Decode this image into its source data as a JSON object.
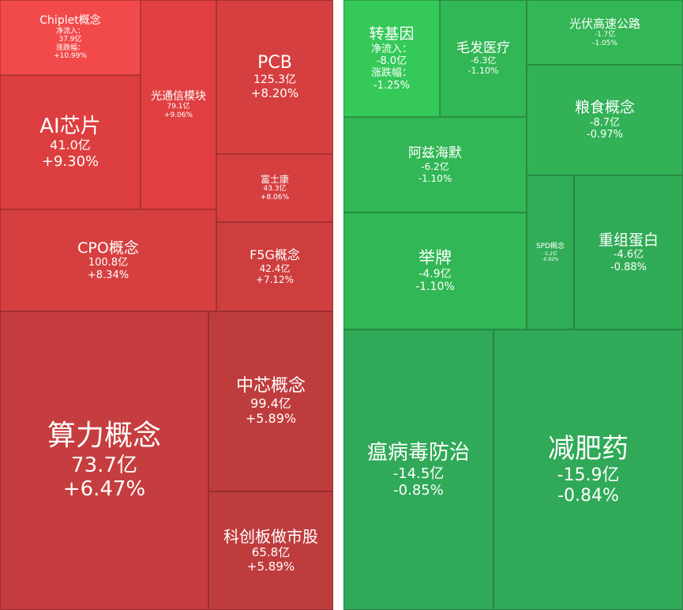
{
  "chart_data": [
    {
      "type": "treemap",
      "group": "gainers",
      "items": [
        {
          "name": "Chiplet概念",
          "flow_label": "净流入：",
          "flow": "37.9亿",
          "change_label": "涨跌幅：",
          "change": "+10.99%",
          "color": "#f24a4a"
        },
        {
          "name": "光通信模块",
          "flow": "79.1亿",
          "change": "+9.06%",
          "color": "#e04041"
        },
        {
          "name": "PCB",
          "flow": "125.3亿",
          "change": "+8.20%",
          "color": "#d63f40"
        },
        {
          "name": "AI芯片",
          "flow": "41.0亿",
          "change": "+9.30%",
          "color": "#dd3e3f"
        },
        {
          "name": "富士康",
          "flow": "43.3亿",
          "change": "+8.06%",
          "color": "#d63f40"
        },
        {
          "name": "CPO概念",
          "flow": "100.8亿",
          "change": "+8.34%",
          "color": "#d63f40"
        },
        {
          "name": "F5G概念",
          "flow": "42.4亿",
          "change": "+7.12%",
          "color": "#ce3e3f"
        },
        {
          "name": "算力概念",
          "flow": "73.7亿",
          "change": "+6.47%",
          "color": "#c53d3e"
        },
        {
          "name": "中芯概念",
          "flow": "99.4亿",
          "change": "+5.89%",
          "color": "#bf3c3d"
        },
        {
          "name": "科创板做市股",
          "flow": "65.8亿",
          "change": "+5.89%",
          "color": "#bf3c3d"
        }
      ]
    },
    {
      "type": "treemap",
      "group": "losers",
      "items": [
        {
          "name": "转基因",
          "flow_label": "净流入：",
          "flow": "-8.0亿",
          "change_label": "涨跌幅：",
          "change": "-1.25%",
          "color": "#35c95a"
        },
        {
          "name": "毛发医疗",
          "flow": "-6.3亿",
          "change": "-1.10%",
          "color": "#31b755"
        },
        {
          "name": "光伏高速公路",
          "flow": "-1.7亿",
          "change": "-1.05%",
          "color": "#33b655"
        },
        {
          "name": "粮食概念",
          "flow": "-8.7亿",
          "change": "-0.97%",
          "color": "#32b156"
        },
        {
          "name": "阿兹海默",
          "flow": "-6.2亿",
          "change": "-1.10%",
          "color": "#31b755"
        },
        {
          "name": "举牌",
          "flow": "-4.9亿",
          "change": "-1.10%",
          "color": "#31b755"
        },
        {
          "name": "SPD概念",
          "flow": "-5.2亿",
          "change": "-0.92%",
          "color": "#30ad56"
        },
        {
          "name": "重组蛋白",
          "flow": "-4.6亿",
          "change": "-0.88%",
          "color": "#2fab56"
        },
        {
          "name": "瘟病毒防治",
          "flow": "-14.5亿",
          "change": "-0.85%",
          "color": "#30a958"
        },
        {
          "name": "减肥药",
          "flow": "-15.9亿",
          "change": "-0.84%",
          "color": "#30a958"
        }
      ]
    }
  ]
}
